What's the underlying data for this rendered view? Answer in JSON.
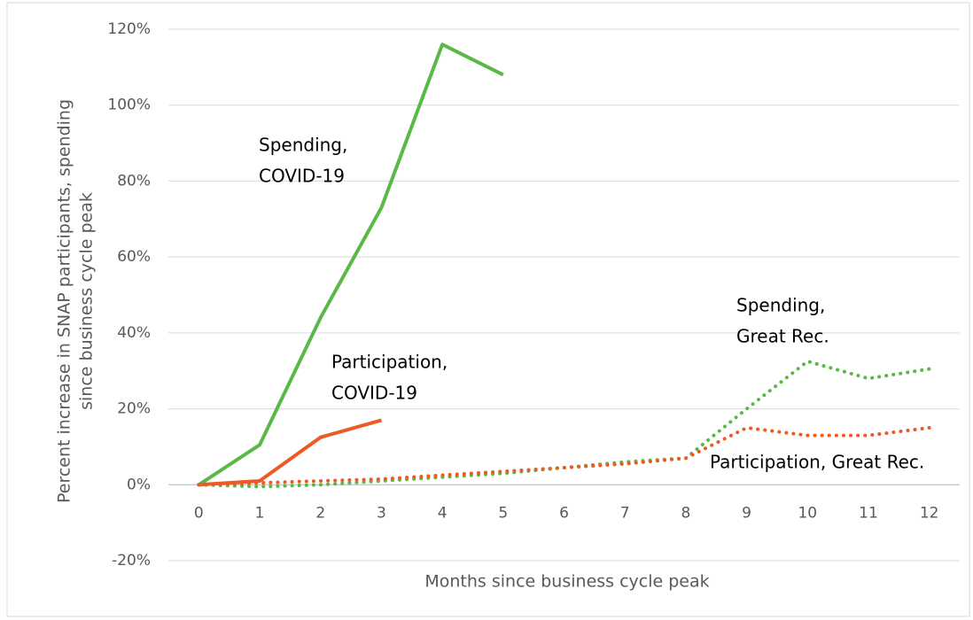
{
  "chart_data": {
    "type": "line",
    "ylabel": [
      "Percent increase in SNAP participants, spending",
      "since business cycle peak"
    ],
    "xlabel": "Months since business cycle peak",
    "x": [
      0,
      1,
      2,
      3,
      4,
      5,
      6,
      7,
      8,
      9,
      10,
      11,
      12
    ],
    "xlim": [
      -0.5,
      12.5
    ],
    "xticks": [
      0,
      1,
      2,
      3,
      4,
      5,
      6,
      7,
      8,
      9,
      10,
      11,
      12
    ],
    "ylim": [
      -20,
      120
    ],
    "yticks": [
      {
        "value": -20,
        "label": "-20%"
      },
      {
        "value": 0,
        "label": "0%"
      },
      {
        "value": 20,
        "label": "20%"
      },
      {
        "value": 40,
        "label": "40%"
      },
      {
        "value": 60,
        "label": "60%"
      },
      {
        "value": 80,
        "label": "80%"
      },
      {
        "value": 100,
        "label": "100%"
      },
      {
        "value": 120,
        "label": "120%"
      }
    ],
    "grid": true,
    "series": [
      {
        "label": [
          "Spending,",
          "COVID-19"
        ],
        "color": "#5ab946",
        "style": "solid",
        "values": [
          0,
          10.5,
          44,
          73,
          116,
          108,
          null,
          null,
          null,
          null,
          null,
          null,
          null
        ]
      },
      {
        "label": [
          "Participation,",
          "COVID-19"
        ],
        "color": "#ee5a25",
        "style": "solid",
        "values": [
          0,
          1,
          12.5,
          17,
          null,
          null,
          null,
          null,
          null,
          null,
          null,
          null,
          null
        ]
      },
      {
        "label": [
          "Spending,",
          "Great Rec."
        ],
        "color": "#5ab946",
        "style": "dotted",
        "values": [
          0,
          -0.5,
          0,
          1,
          2,
          3,
          4.5,
          6,
          7,
          20,
          32.5,
          28,
          30.5
        ]
      },
      {
        "label": [
          "Participation, Great Rec."
        ],
        "color": "#ee5a25",
        "style": "dotted",
        "values": [
          0,
          0.5,
          1,
          1.5,
          2.5,
          3.5,
          4.5,
          5.5,
          7,
          15,
          13,
          13,
          15
        ]
      }
    ]
  }
}
